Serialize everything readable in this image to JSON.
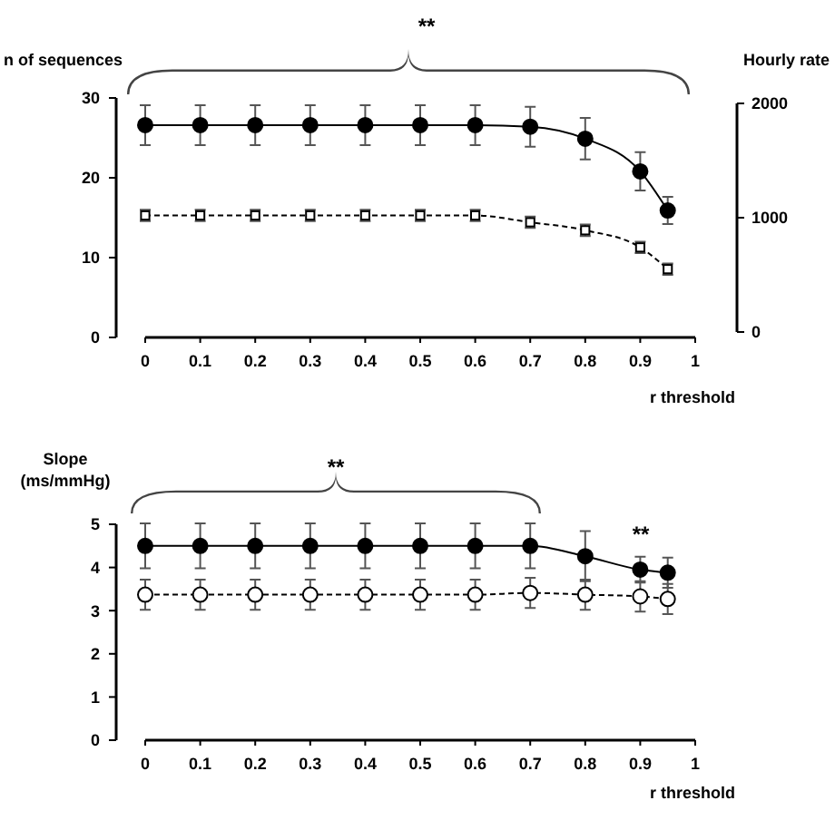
{
  "chart_data": [
    {
      "type": "line",
      "ylabel": "n of sequences",
      "y2label": "Hourly rate",
      "xlabel": "r threshold",
      "annotations": [
        "**"
      ],
      "x": [
        0,
        0.1,
        0.2,
        0.3,
        0.4,
        0.5,
        0.6,
        0.7,
        0.8,
        0.9,
        0.95
      ],
      "xlim": [
        0,
        1
      ],
      "xticks": [
        0,
        0.1,
        0.2,
        0.3,
        0.4,
        0.5,
        0.6,
        0.7,
        0.8,
        0.9,
        1
      ],
      "ylim": [
        0,
        30
      ],
      "yticks": [
        0,
        10,
        20,
        30
      ],
      "y2lim": [
        0,
        2000
      ],
      "y2ticks": [
        0,
        1000,
        2000
      ],
      "grid": false,
      "series": [
        {
          "color": "#000000",
          "marker": "circle",
          "line_style": "solid",
          "values": [
            26.6,
            26.6,
            26.6,
            26.6,
            26.6,
            26.6,
            26.6,
            26.4,
            24.9,
            20.8,
            15.9
          ],
          "errors": [
            2.5,
            2.5,
            2.5,
            2.5,
            2.5,
            2.5,
            2.5,
            2.5,
            2.6,
            2.4,
            1.7
          ]
        },
        {
          "color": "#000000",
          "marker": "square",
          "line_style": "dashed",
          "axis": "y2",
          "values": [
            1020,
            1020,
            1020,
            1020,
            1020,
            1020,
            1020,
            960,
            890,
            740,
            550
          ],
          "errors": [
            50,
            50,
            50,
            50,
            50,
            50,
            50,
            50,
            50,
            50,
            50
          ]
        }
      ]
    },
    {
      "type": "line",
      "ylabel": "Slope (ms/mmHg)",
      "xlabel": "r threshold",
      "annotations": [
        "**",
        "**"
      ],
      "x": [
        0,
        0.1,
        0.2,
        0.3,
        0.4,
        0.5,
        0.6,
        0.7,
        0.8,
        0.9,
        0.95
      ],
      "xlim": [
        0,
        1
      ],
      "xticks": [
        0,
        0.1,
        0.2,
        0.3,
        0.4,
        0.5,
        0.6,
        0.7,
        0.8,
        0.9,
        1
      ],
      "ylim": [
        0,
        5
      ],
      "yticks": [
        0,
        1,
        2,
        3,
        4,
        5
      ],
      "grid": false,
      "series": [
        {
          "color": "#000000",
          "marker": "circle",
          "line_style": "solid",
          "values": [
            4.5,
            4.5,
            4.5,
            4.5,
            4.5,
            4.5,
            4.5,
            4.5,
            4.26,
            3.95,
            3.88
          ],
          "errors": [
            0.52,
            0.52,
            0.52,
            0.52,
            0.52,
            0.52,
            0.52,
            0.52,
            0.58,
            0.3,
            0.35
          ]
        },
        {
          "color": "#000000",
          "marker": "circle",
          "line_style": "dashed",
          "values": [
            3.37,
            3.37,
            3.37,
            3.37,
            3.37,
            3.37,
            3.37,
            3.41,
            3.37,
            3.33,
            3.27
          ],
          "errors": [
            0.35,
            0.35,
            0.35,
            0.35,
            0.35,
            0.35,
            0.35,
            0.35,
            0.35,
            0.35,
            0.35
          ]
        }
      ]
    }
  ]
}
